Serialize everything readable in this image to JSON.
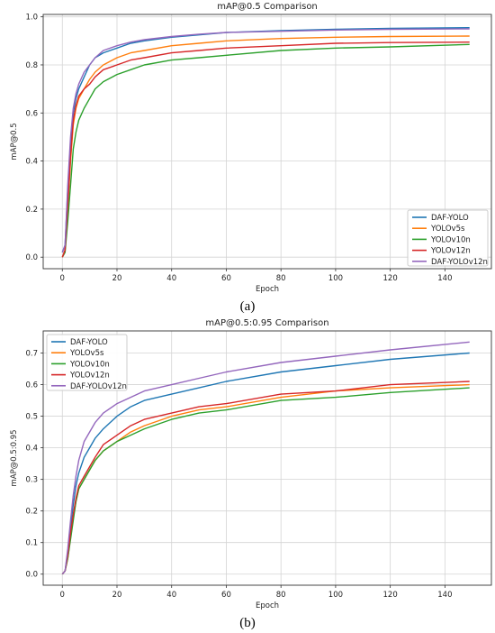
{
  "colors": {
    "DAF-YOLO": "#1f77b4",
    "YOLOv5s": "#ff7f0e",
    "YOLOv10n": "#2ca02c",
    "YOLOv12n": "#d62728",
    "DAF-YOLOv12n": "#9467bd"
  },
  "chart_data": [
    {
      "type": "line",
      "panel_caption": "(a)",
      "title": "mAP@0.5 Comparison",
      "xlabel": "Epoch",
      "ylabel": "mAP@0.5",
      "xlim": [
        -7,
        157
      ],
      "ylim": [
        -0.048,
        1.01
      ],
      "xticks": [
        0,
        20,
        40,
        60,
        80,
        100,
        120,
        140
      ],
      "yticks": [
        0.0,
        0.2,
        0.4,
        0.6,
        0.8,
        1.0
      ],
      "ytick_labels": [
        "0.0",
        "0.2",
        "0.4",
        "0.6",
        "0.8",
        "1.0"
      ],
      "grid": true,
      "legend_position": "bottom-right",
      "series": [
        {
          "name": "DAF-YOLO",
          "x": [
            0,
            1,
            2,
            3,
            4,
            5,
            6,
            8,
            10,
            12,
            15,
            20,
            25,
            30,
            40,
            50,
            60,
            80,
            100,
            120,
            149
          ],
          "y": [
            0.02,
            0.05,
            0.28,
            0.45,
            0.6,
            0.66,
            0.7,
            0.75,
            0.8,
            0.83,
            0.85,
            0.87,
            0.89,
            0.9,
            0.915,
            0.925,
            0.935,
            0.943,
            0.948,
            0.952,
            0.955
          ]
        },
        {
          "name": "YOLOv5s",
          "x": [
            0,
            1,
            2,
            3,
            4,
            5,
            6,
            8,
            10,
            12,
            15,
            20,
            25,
            30,
            40,
            50,
            60,
            80,
            100,
            120,
            149
          ],
          "y": [
            0.0,
            0.03,
            0.2,
            0.4,
            0.55,
            0.62,
            0.66,
            0.7,
            0.74,
            0.77,
            0.8,
            0.83,
            0.85,
            0.86,
            0.88,
            0.89,
            0.9,
            0.91,
            0.915,
            0.918,
            0.92
          ]
        },
        {
          "name": "YOLOv10n",
          "x": [
            0,
            1,
            2,
            3,
            4,
            5,
            6,
            8,
            10,
            12,
            15,
            20,
            25,
            30,
            40,
            50,
            60,
            80,
            100,
            120,
            149
          ],
          "y": [
            0.0,
            0.02,
            0.15,
            0.3,
            0.45,
            0.52,
            0.57,
            0.62,
            0.66,
            0.7,
            0.73,
            0.76,
            0.78,
            0.8,
            0.82,
            0.83,
            0.84,
            0.86,
            0.87,
            0.875,
            0.885
          ]
        },
        {
          "name": "YOLOv12n",
          "x": [
            0,
            1,
            2,
            3,
            4,
            5,
            6,
            8,
            10,
            12,
            15,
            20,
            25,
            30,
            40,
            50,
            60,
            80,
            100,
            120,
            149
          ],
          "y": [
            0.0,
            0.03,
            0.22,
            0.42,
            0.57,
            0.63,
            0.67,
            0.7,
            0.72,
            0.75,
            0.78,
            0.8,
            0.82,
            0.83,
            0.85,
            0.86,
            0.87,
            0.88,
            0.89,
            0.893,
            0.895
          ]
        },
        {
          "name": "DAF-YOLOv12n",
          "x": [
            0,
            1,
            2,
            3,
            4,
            5,
            6,
            8,
            10,
            12,
            15,
            20,
            25,
            30,
            40,
            50,
            60,
            80,
            100,
            120,
            149
          ],
          "y": [
            0.02,
            0.05,
            0.3,
            0.5,
            0.62,
            0.68,
            0.72,
            0.77,
            0.8,
            0.83,
            0.86,
            0.88,
            0.895,
            0.905,
            0.918,
            0.928,
            0.935,
            0.94,
            0.945,
            0.948,
            0.95
          ]
        }
      ]
    },
    {
      "type": "line",
      "panel_caption": "(b)",
      "title": "mAP@0.5:0.95 Comparison",
      "xlabel": "Epoch",
      "ylabel": "mAP@0.5:0.95",
      "xlim": [
        -7,
        157
      ],
      "ylim": [
        -0.035,
        0.77
      ],
      "xticks": [
        0,
        20,
        40,
        60,
        80,
        100,
        120,
        140
      ],
      "yticks": [
        0.0,
        0.1,
        0.2,
        0.3,
        0.4,
        0.5,
        0.6,
        0.7
      ],
      "ytick_labels": [
        "0.0",
        "0.1",
        "0.2",
        "0.3",
        "0.4",
        "0.5",
        "0.6",
        "0.7"
      ],
      "grid": true,
      "legend_position": "top-left",
      "series": [
        {
          "name": "DAF-YOLO",
          "x": [
            0,
            1,
            2,
            3,
            4,
            5,
            6,
            8,
            10,
            12,
            15,
            20,
            25,
            30,
            40,
            50,
            60,
            80,
            100,
            120,
            149
          ],
          "y": [
            0.0,
            0.01,
            0.07,
            0.15,
            0.22,
            0.28,
            0.32,
            0.37,
            0.4,
            0.43,
            0.46,
            0.5,
            0.53,
            0.55,
            0.57,
            0.59,
            0.61,
            0.64,
            0.66,
            0.68,
            0.7
          ]
        },
        {
          "name": "YOLOv5s",
          "x": [
            0,
            1,
            2,
            3,
            4,
            5,
            6,
            8,
            10,
            12,
            15,
            20,
            25,
            30,
            40,
            50,
            60,
            80,
            100,
            120,
            149
          ],
          "y": [
            0.0,
            0.01,
            0.05,
            0.12,
            0.18,
            0.23,
            0.27,
            0.3,
            0.33,
            0.36,
            0.39,
            0.42,
            0.45,
            0.47,
            0.5,
            0.52,
            0.53,
            0.56,
            0.58,
            0.59,
            0.6
          ]
        },
        {
          "name": "YOLOv10n",
          "x": [
            0,
            1,
            2,
            3,
            4,
            5,
            6,
            8,
            10,
            12,
            15,
            20,
            25,
            30,
            40,
            50,
            60,
            80,
            100,
            120,
            149
          ],
          "y": [
            0.0,
            0.01,
            0.05,
            0.11,
            0.17,
            0.23,
            0.27,
            0.3,
            0.33,
            0.36,
            0.39,
            0.42,
            0.44,
            0.46,
            0.49,
            0.51,
            0.52,
            0.55,
            0.56,
            0.575,
            0.59
          ]
        },
        {
          "name": "YOLOv12n",
          "x": [
            0,
            1,
            2,
            3,
            4,
            5,
            6,
            8,
            10,
            12,
            15,
            20,
            25,
            30,
            40,
            50,
            60,
            80,
            100,
            120,
            149
          ],
          "y": [
            0.0,
            0.01,
            0.06,
            0.13,
            0.19,
            0.24,
            0.28,
            0.31,
            0.34,
            0.37,
            0.41,
            0.44,
            0.47,
            0.49,
            0.51,
            0.53,
            0.54,
            0.57,
            0.58,
            0.6,
            0.61
          ]
        },
        {
          "name": "DAF-YOLOv12n",
          "x": [
            0,
            1,
            2,
            3,
            4,
            5,
            6,
            8,
            10,
            12,
            15,
            20,
            25,
            30,
            40,
            50,
            60,
            80,
            100,
            120,
            149
          ],
          "y": [
            0.0,
            0.01,
            0.08,
            0.17,
            0.25,
            0.31,
            0.36,
            0.42,
            0.45,
            0.48,
            0.51,
            0.54,
            0.56,
            0.58,
            0.6,
            0.62,
            0.64,
            0.67,
            0.69,
            0.71,
            0.735
          ]
        }
      ]
    }
  ]
}
